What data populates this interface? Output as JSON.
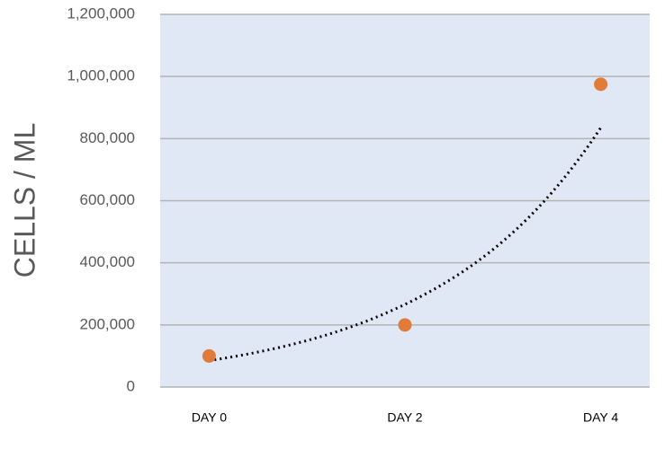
{
  "chart_data": {
    "type": "scatter",
    "y_label": "CELLS / ML",
    "categories": [
      "DAY 0",
      "DAY 2",
      "DAY 4"
    ],
    "series": [
      {
        "color": "#e07b39",
        "values": [
          100000,
          200000,
          975000
        ]
      }
    ],
    "trendline": {
      "kind": "exponential",
      "color": "#000000",
      "values": [
        85000,
        266000,
        835000
      ]
    },
    "ylim": [
      0,
      1200000
    ],
    "yticks": [
      0,
      {
        "value": 200000,
        "label": "200,000"
      },
      {
        "value": 400000,
        "label": "400,000"
      },
      {
        "value": 600000,
        "label": "600,000"
      },
      {
        "value": 800000,
        "label": "800,000"
      },
      {
        "value": 1000000,
        "label": "1,000,000"
      },
      {
        "value": 1200000,
        "label": "1,200,000"
      }
    ],
    "grid": true,
    "plot_background": "#e0e7f5"
  }
}
